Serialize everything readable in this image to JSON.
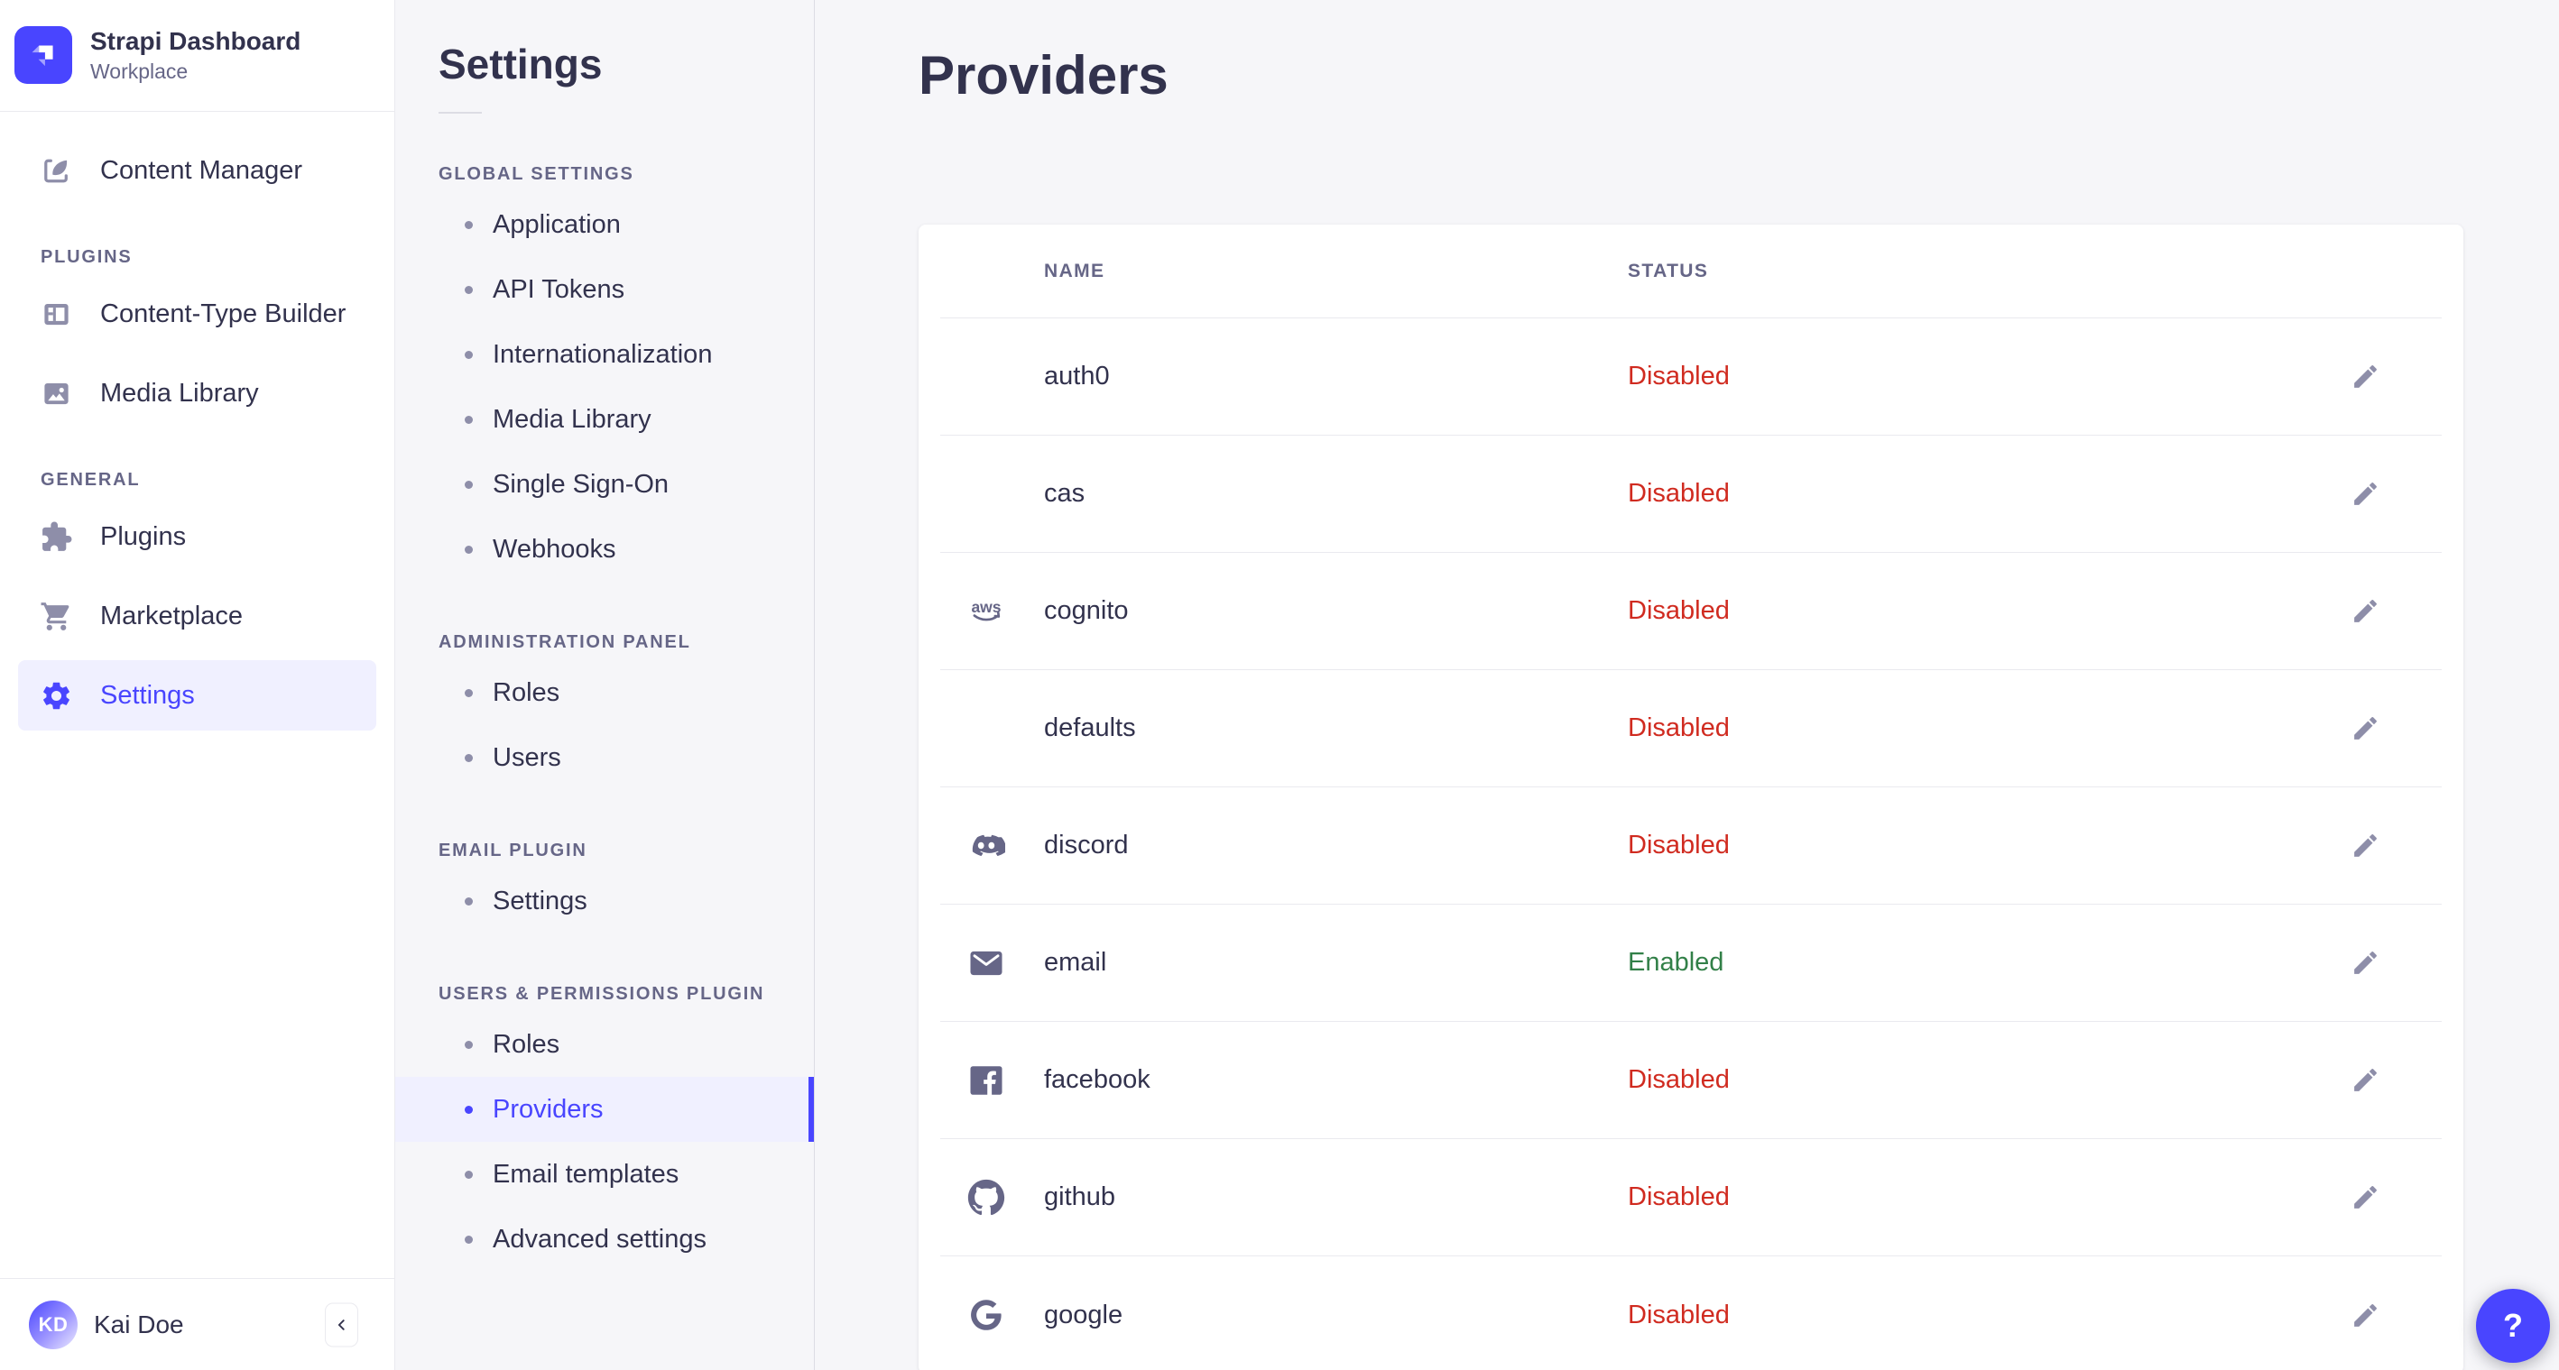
{
  "brand": {
    "title": "Strapi Dashboard",
    "subtitle": "Workplace",
    "logo_icon": "strapi-logo-icon"
  },
  "sidebar": {
    "content_manager": {
      "label": "Content Manager",
      "icon": "content-manager-icon"
    },
    "sections": [
      {
        "label": "PLUGINS",
        "items": [
          {
            "label": "Content-Type Builder",
            "icon": "content-type-builder-icon"
          },
          {
            "label": "Media Library",
            "icon": "media-library-icon"
          }
        ]
      },
      {
        "label": "GENERAL",
        "items": [
          {
            "label": "Plugins",
            "icon": "plugins-icon"
          },
          {
            "label": "Marketplace",
            "icon": "marketplace-icon"
          },
          {
            "label": "Settings",
            "icon": "gear-icon",
            "active": true
          }
        ]
      }
    ],
    "user": {
      "initials": "KD",
      "name": "Kai Doe"
    },
    "collapse_icon": "chevron-left-icon"
  },
  "subnav": {
    "title": "Settings",
    "sections": [
      {
        "label": "GLOBAL SETTINGS",
        "items": [
          "Application",
          "API Tokens",
          "Internationalization",
          "Media Library",
          "Single Sign-On",
          "Webhooks"
        ]
      },
      {
        "label": "ADMINISTRATION PANEL",
        "items": [
          "Roles",
          "Users"
        ]
      },
      {
        "label": "EMAIL PLUGIN",
        "items": [
          "Settings"
        ]
      },
      {
        "label": "USERS & PERMISSIONS PLUGIN",
        "items": [
          "Roles",
          "Providers",
          "Email templates",
          "Advanced settings"
        ],
        "active_item": "Providers"
      }
    ]
  },
  "main": {
    "title": "Providers",
    "table": {
      "columns": [
        "NAME",
        "STATUS"
      ],
      "edit_icon": "pencil-icon",
      "rows": [
        {
          "name": "auth0",
          "icon": null,
          "status": "Disabled"
        },
        {
          "name": "cas",
          "icon": null,
          "status": "Disabled"
        },
        {
          "name": "cognito",
          "icon": "aws-icon",
          "status": "Disabled"
        },
        {
          "name": "defaults",
          "icon": null,
          "status": "Disabled"
        },
        {
          "name": "discord",
          "icon": "discord-icon",
          "status": "Disabled"
        },
        {
          "name": "email",
          "icon": "email-icon",
          "status": "Enabled"
        },
        {
          "name": "facebook",
          "icon": "facebook-icon",
          "status": "Disabled"
        },
        {
          "name": "github",
          "icon": "github-icon",
          "status": "Disabled"
        },
        {
          "name": "google",
          "icon": "google-icon",
          "status": "Disabled"
        }
      ]
    }
  },
  "help": {
    "label": "?"
  },
  "colors": {
    "accent": "#4945FF",
    "accent_bg": "#F0F0FF",
    "status_disabled": "#D02B20",
    "status_enabled": "#328048",
    "background": "#F6F6F9",
    "border": "#EAEAEF",
    "text_dark": "#32324D",
    "text_gray": "#666687"
  }
}
